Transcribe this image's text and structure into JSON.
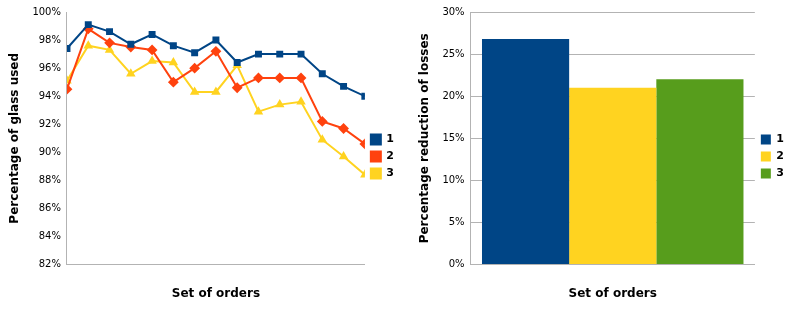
{
  "chart_data": [
    {
      "type": "line",
      "x_label": "Set of orders",
      "y_label": "Percentage of glass used",
      "categories": [
        null,
        null,
        null,
        null,
        null,
        null,
        null,
        null,
        null,
        null,
        null,
        null,
        null,
        null,
        null
      ],
      "series": [
        {
          "name": "1",
          "color": "#004586",
          "marker": "square",
          "values": [
            97.4,
            99.1,
            98.6,
            97.7,
            98.4,
            97.6,
            97.1,
            98.0,
            96.4,
            97.0,
            97.0,
            97.0,
            95.6,
            94.7,
            94.0
          ]
        },
        {
          "name": "2",
          "color": "#ff420e",
          "marker": "diamond",
          "values": [
            94.5,
            98.8,
            97.8,
            97.5,
            97.3,
            95.0,
            96.0,
            97.2,
            94.6,
            95.3,
            95.3,
            95.3,
            92.2,
            91.7,
            90.6
          ]
        },
        {
          "name": "3",
          "color": "#ffd320",
          "marker": "triangle",
          "values": [
            95.1,
            97.6,
            97.3,
            95.6,
            96.5,
            96.4,
            94.3,
            94.3,
            96.2,
            92.9,
            93.4,
            93.6,
            90.9,
            89.7,
            88.4
          ]
        }
      ],
      "ylim": [
        82,
        100
      ],
      "yticks": [
        {
          "value": 82,
          "label": "82%"
        },
        {
          "value": 84,
          "label": "84%"
        },
        {
          "value": 86,
          "label": "86%"
        },
        {
          "value": 88,
          "label": "88%"
        },
        {
          "value": 90,
          "label": "90%"
        },
        {
          "value": 92,
          "label": "92%"
        },
        {
          "value": 94,
          "label": "94%"
        },
        {
          "value": 96,
          "label": "96%"
        },
        {
          "value": 98,
          "label": "98%"
        },
        {
          "value": 100,
          "label": "100%"
        }
      ],
      "grid": false,
      "legend": "right"
    },
    {
      "type": "bar",
      "x_label": "Set of orders",
      "y_label": "Percentage reduction of losses",
      "categories": [
        null
      ],
      "series": [
        {
          "name": "1",
          "color": "#004586",
          "values": [
            26.8
          ]
        },
        {
          "name": "2",
          "color": "#ffd320",
          "values": [
            21.0
          ]
        },
        {
          "name": "3",
          "color": "#579d1c",
          "values": [
            22.0
          ]
        }
      ],
      "ylim": [
        0,
        30
      ],
      "yticks": [
        {
          "value": 0,
          "label": "0%"
        },
        {
          "value": 5,
          "label": "5%"
        },
        {
          "value": 10,
          "label": "10%"
        },
        {
          "value": 15,
          "label": "15%"
        },
        {
          "value": 20,
          "label": "20%"
        },
        {
          "value": 25,
          "label": "25%"
        },
        {
          "value": 30,
          "label": "30%"
        }
      ],
      "grid": true,
      "legend": "right"
    }
  ]
}
